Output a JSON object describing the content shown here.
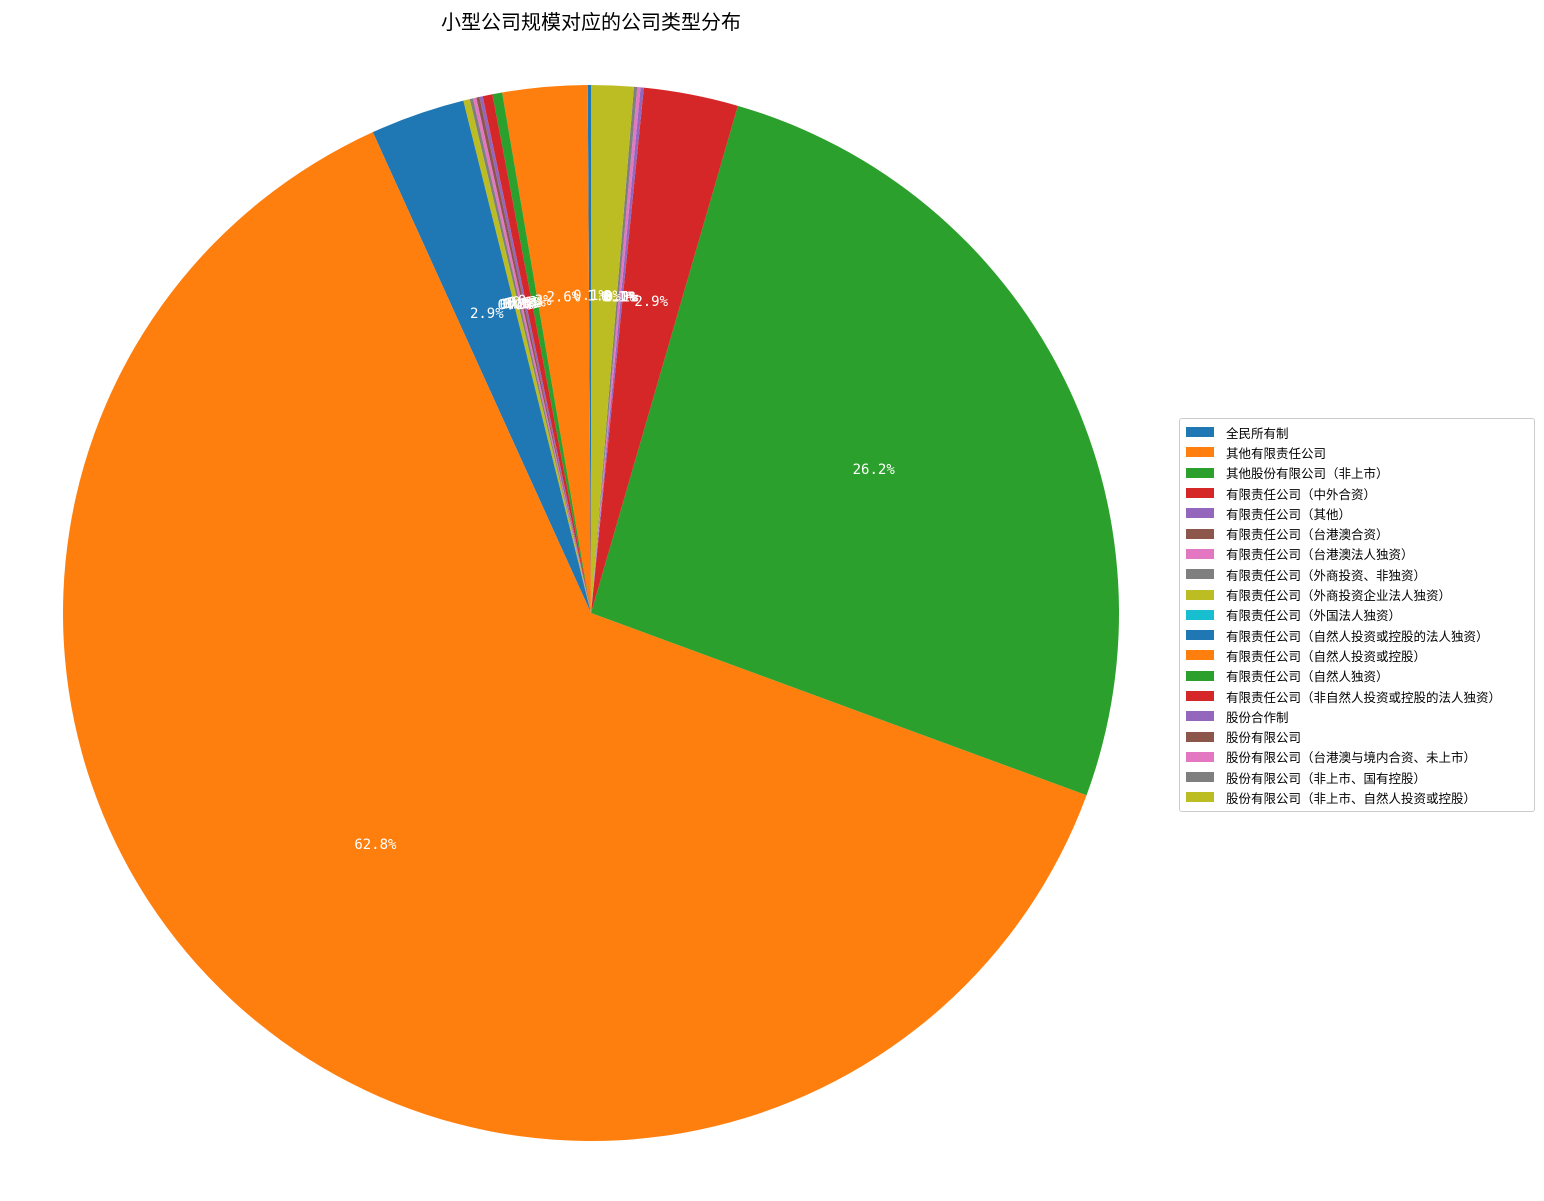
{
  "chart_data": {
    "type": "pie",
    "title": "小型公司规模对应的公司类型分布",
    "legend_position": "right",
    "start_angle_deg": 90,
    "direction": "counterclockwise",
    "categories": [
      "全民所有制",
      "其他有限责任公司",
      "其他股份有限公司（非上市）",
      "有限责任公司（中外合资）",
      "有限责任公司（其他）",
      "有限责任公司（台港澳合资）",
      "有限责任公司（台港澳法人独资）",
      "有限责任公司（外商投资、非独资）",
      "有限责任公司（外商投资企业法人独资）",
      "有限责任公司（外国法人独资）",
      "有限责任公司（自然人投资或控股的法人独资）",
      "有限责任公司（自然人投资或控股）",
      "有限责任公司（自然人独资）",
      "有限责任公司（非自然人投资或控股的法人独资）",
      "股份合作制",
      "股份有限公司",
      "股份有限公司（台港澳与境内合资、未上市）",
      "股份有限公司（非上市、国有控股）",
      "股份有限公司（非上市、自然人投资或控股）"
    ],
    "values": [
      0.1,
      2.6,
      0.3,
      0.3,
      0.1,
      0.1,
      0.1,
      0.1,
      0.2,
      0.0,
      2.9,
      62.8,
      26.2,
      2.9,
      0.1,
      0.0,
      0.1,
      0.1,
      1.3
    ],
    "labels": [
      "0.1%",
      "2.6%",
      "0.3%",
      "0.3%",
      "0.1%",
      "0.1%",
      "0.1%",
      "0.1%",
      "0.2%",
      "0.0%",
      "2.9%",
      "62.8%",
      "26.2%",
      "2.9%",
      "0.1%",
      "0.0%",
      "0.1%",
      "0.1%",
      "1.3%"
    ],
    "colors": [
      "#1f77b4",
      "#ff7f0e",
      "#2ca02c",
      "#d62728",
      "#9467bd",
      "#8c564b",
      "#e377c2",
      "#7f7f7f",
      "#bcbd22",
      "#17becf",
      "#1f77b4",
      "#ff7f0e",
      "#2ca02c",
      "#d62728",
      "#9467bd",
      "#8c564b",
      "#e377c2",
      "#7f7f7f",
      "#bcbd22"
    ]
  }
}
